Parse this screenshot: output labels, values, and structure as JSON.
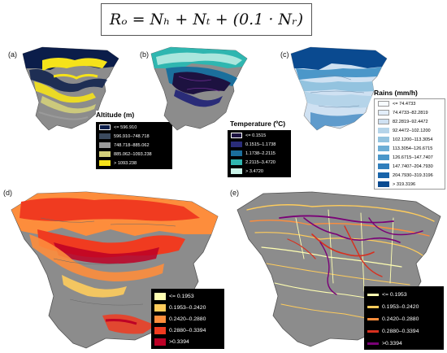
{
  "formula": "R_W = N_H + N_T + (0.1 · N_R)",
  "formula_display": "Rₒ = Nₕ + Nₜ + (0.1 · Nᵣ)",
  "panels": {
    "a": {
      "label": "(a)",
      "legend_title": "Altitude (m)",
      "items": [
        "<= 596.910",
        "596.910–748.718",
        "748.718–885.062",
        "885.062–1093.238",
        "> 1093.238"
      ],
      "colors": [
        "#0b1d4a",
        "#3b4a5e",
        "#9a9a9a",
        "#d3cf7a",
        "#f5e21a"
      ]
    },
    "b": {
      "label": "(b)",
      "legend_title": "Temperature (ºC)",
      "items": [
        "<= 0.1515",
        "0.1515–1.1738",
        "1.1738–2.2115",
        "2.2115–3.4720",
        "> 3.4720"
      ],
      "colors": [
        "#1d1240",
        "#2a2c78",
        "#1b6f9c",
        "#2fb6b0",
        "#c9f3e8"
      ]
    },
    "c": {
      "label": "(c)",
      "legend_title": "Rains (mm/h)",
      "items": [
        "<= 74.4733",
        "74.4733–82.2819",
        "82.2819–92.4472",
        "92.4472–102.1200",
        "102.1200–113.3054",
        "113.3054–126.6715",
        "126.6715–147.7407",
        "147.7407–204.7930",
        "204.7930–319.3196",
        "> 319.3196"
      ],
      "colors": [
        "#f7fbff",
        "#e3eef9",
        "#cfe1f2",
        "#b5d4e9",
        "#93c3df",
        "#6daed5",
        "#4b97c9",
        "#2f7ebc",
        "#1864aa",
        "#0a4a90"
      ]
    },
    "d": {
      "label": "(d)",
      "items": [
        "<= 0.1953",
        "0.1953–0.2420",
        "0.2420–0.2880",
        "0.2880–0.3394",
        ">0.3394"
      ],
      "colors": [
        "#ffffb2",
        "#fecc5c",
        "#fd8d3c",
        "#f03b20",
        "#bd0026"
      ]
    },
    "e": {
      "label": "(e)",
      "items": [
        "<= 0.1953",
        "0.1953–0.2420",
        "0.2420–0.2880",
        "0.2880–0.3394",
        ">0.3394"
      ],
      "colors": [
        "#ffffb2",
        "#fecc5c",
        "#fd8d3c",
        "#d7301f",
        "#7a0177"
      ]
    }
  },
  "map_grey": "#8c8c8c"
}
